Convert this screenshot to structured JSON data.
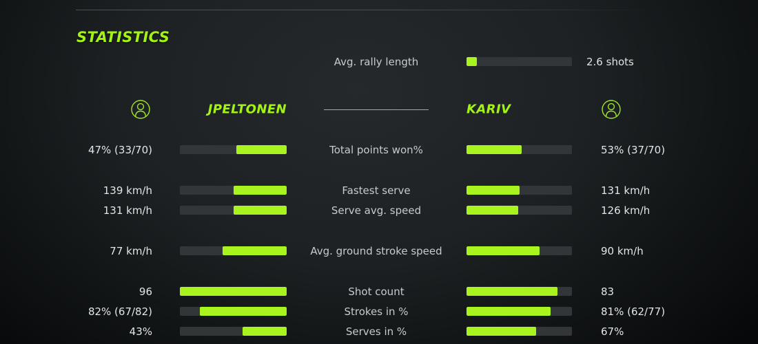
{
  "title": "STATISTICS",
  "colors": {
    "accent_green": "#a9f31e",
    "bar_track": "#333639",
    "label_text": "#c6cbce",
    "value_text": "#e2e6e8",
    "background": "#1d2123"
  },
  "rally": {
    "label": "Avg. rally length",
    "value": "2.6 shots",
    "fill_pct": 10
  },
  "players": {
    "left": {
      "name": "JPELTONEN",
      "icon": "person-icon"
    },
    "right": {
      "name": "KARIV",
      "icon": "person-icon"
    }
  },
  "chart_data": {
    "type": "bar",
    "title": "Head-to-head match statistics",
    "legend_left": "JPELTONEN",
    "legend_right": "KARIV",
    "note": "fill_pct is the rendered green portion of each bar; left bars fill toward center (right-anchored), right bars fill from center (left-anchored)",
    "rows": [
      {
        "label": "Total points won%",
        "left": {
          "value": "47% (33/70)",
          "fill_pct": 47
        },
        "right": {
          "value": "53% (37/70)",
          "fill_pct": 52
        }
      },
      {
        "label": "Fastest serve",
        "left": {
          "value": "139 km/h",
          "fill_pct": 50
        },
        "right": {
          "value": "131 km/h",
          "fill_pct": 50
        }
      },
      {
        "label": "Serve avg. speed",
        "left": {
          "value": "131 km/h",
          "fill_pct": 50
        },
        "right": {
          "value": "126 km/h",
          "fill_pct": 49
        }
      },
      {
        "label": "Avg. ground stroke speed",
        "left": {
          "value": "77 km/h",
          "fill_pct": 60
        },
        "right": {
          "value": "90 km/h",
          "fill_pct": 69
        }
      },
      {
        "label": "Shot count",
        "left": {
          "value": "96",
          "fill_pct": 100
        },
        "right": {
          "value": "83",
          "fill_pct": 86
        }
      },
      {
        "label": "Strokes in %",
        "left": {
          "value": "82% (67/82)",
          "fill_pct": 81
        },
        "right": {
          "value": "81% (62/77)",
          "fill_pct": 80
        }
      },
      {
        "label": "Serves in %",
        "left": {
          "value": "43%",
          "fill_pct": 41
        },
        "right": {
          "value": "67%",
          "fill_pct": 66
        }
      }
    ]
  }
}
